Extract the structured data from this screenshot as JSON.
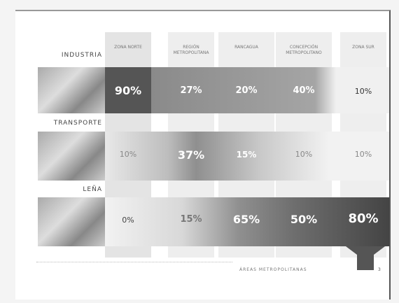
{
  "header": {
    "columns": [
      "ZONA NORTE",
      "REGIÓN METROPOLITANA",
      "RANCAGUA",
      "CONCEPCIÓN METROPOLITANO",
      "ZONA SUR"
    ]
  },
  "table": {
    "rows": [
      {
        "label": "INDUSTRIA",
        "cells": [
          "90%",
          "27%",
          "20%",
          "40%",
          "10%"
        ]
      },
      {
        "label": "TRANSPORTE",
        "cells": [
          "10%",
          "37%",
          "15%",
          "10%",
          "10%"
        ]
      },
      {
        "label": "LEÑA",
        "cells": [
          "0%",
          "15%",
          "65%",
          "50%",
          "80%"
        ]
      }
    ]
  },
  "footer": {
    "caption": "ÁREAS METROPOLITANAS",
    "page": "3"
  }
}
